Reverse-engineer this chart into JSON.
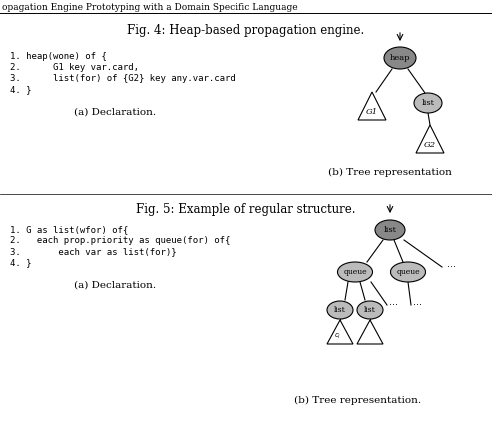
{
  "fig_title1": "Fig. 4: Heap-based propagation engine.",
  "fig_title2": "Fig. 5: Example of regular structure.",
  "header_text": "opagation Engine Prototyping with a Domain Specific Language",
  "code1": [
    "1. heap(wone) of {",
    "2.      G1 key var.card,",
    "3.      list(for) of {G2} key any.var.card",
    "4. }"
  ],
  "caption1a": "(a) Declaration.",
  "caption1b": "(b) Tree representation",
  "code2": [
    "1. G as list(wfor) of{",
    "2.   each prop.priority as queue(for) of{",
    "3.       each var as list(for)}",
    "4. }"
  ],
  "caption2a": "(a) Declaration.",
  "caption2b": "(b) Tree representation.",
  "node_fill_dark": "#888888",
  "node_fill_mid": "#bbbbbb",
  "node_fill_light": "#ffffff",
  "bg_color": "#ffffff"
}
